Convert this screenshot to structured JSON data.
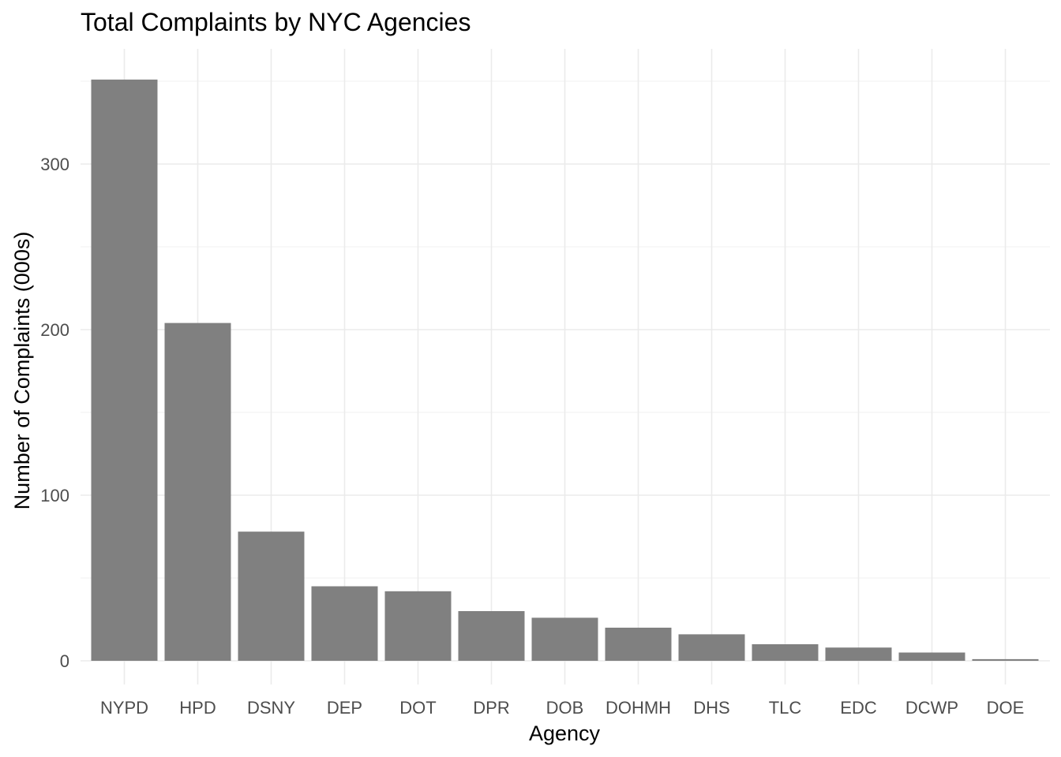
{
  "chart_data": {
    "type": "bar",
    "title": "Total Complaints by NYC Agencies",
    "xlabel": "Agency",
    "ylabel": "Number of Complaints (000s)",
    "categories": [
      "NYPD",
      "HPD",
      "DSNY",
      "DEP",
      "DOT",
      "DPR",
      "DOB",
      "DOHMH",
      "DHS",
      "TLC",
      "EDC",
      "DCWP",
      "DOE"
    ],
    "values": [
      351,
      204,
      78,
      45,
      42,
      30,
      26,
      20,
      16,
      10,
      8,
      5,
      1
    ],
    "ylim": [
      -16,
      368
    ],
    "yticks": [
      0,
      100,
      200,
      300
    ],
    "bar_color": "#808080",
    "grid": true,
    "legend": "none"
  }
}
